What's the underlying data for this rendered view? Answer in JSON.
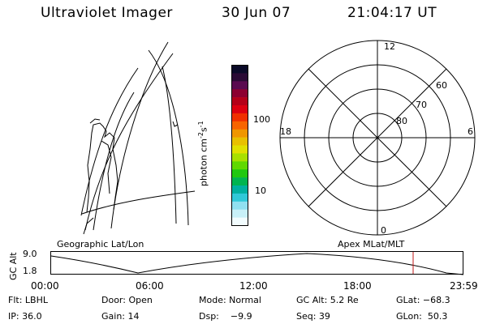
{
  "header": {
    "instrument": "Ultraviolet Imager",
    "date": "30 Jun 07",
    "time": "21:04:17 UT"
  },
  "left_panel": {
    "caption": "Geographic Lat/Lon"
  },
  "right_panel": {
    "caption": "Apex MLat/MLT",
    "mlt_labels": [
      "12",
      "18",
      "6",
      "0"
    ],
    "mlat_labels": [
      "60",
      "70",
      "80"
    ]
  },
  "colorbar": {
    "unit_label": "photon cm",
    "unit_sup1": "-2",
    "unit_s": "s",
    "unit_sup2": "-1",
    "tick_labels": [
      "100",
      "10"
    ],
    "colors": [
      "#0a0a28",
      "#2a0a35",
      "#5a0a50",
      "#8c0030",
      "#b40018",
      "#dc0010",
      "#f03000",
      "#f86400",
      "#f09600",
      "#e8c000",
      "#e0e000",
      "#a8e000",
      "#60d800",
      "#20c810",
      "#00b450",
      "#00b0a0",
      "#30c8d8",
      "#90e0f0",
      "#c8f0f8",
      "#f2fcfe"
    ]
  },
  "timeline": {
    "axis_label": "GC Alt",
    "y_labels": [
      "9.0",
      "1.8"
    ],
    "x_labels": [
      "00:00",
      "06:00",
      "12:00",
      "18:00",
      "23:59"
    ],
    "current_marker_color": "#c01818"
  },
  "info": {
    "filter": "Flt: LBHL",
    "door": "Door: Open",
    "mode": "Mode: Normal",
    "gc_alt": "GC Alt: 5.2 Re",
    "glat": "GLat: −68.3",
    "ip": "IP: 36.0",
    "gain": "Gain: 14",
    "dsp": "Dsp:    −9.9",
    "seq": "Seq: 39",
    "glon": "GLon:  50.3"
  }
}
